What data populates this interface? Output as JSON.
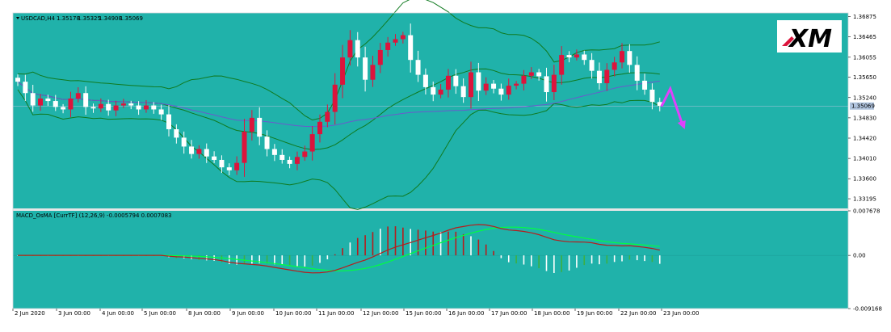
{
  "chart_data": [
    {
      "type": "candlestick",
      "title": "USDCAD,H4",
      "ohlc_readout": [
        "1.35178",
        "1.35325",
        "1.34908",
        "1.35069"
      ],
      "current_price": "1.35069",
      "ylim": [
        1.33,
        1.3695
      ],
      "ytick_labels": [
        "1.36875",
        "1.36465",
        "1.36055",
        "1.35650",
        "1.35240",
        "1.34830",
        "1.34420",
        "1.34010",
        "1.33600",
        "1.33195"
      ],
      "xtick_labels": [
        "2 Jun 2020",
        "3 Jun 00:00",
        "4 Jun 00:00",
        "5 Jun 00:00",
        "8 Jun 00:00",
        "9 Jun 00:00",
        "10 Jun 00:00",
        "11 Jun 00:00",
        "12 Jun 00:00",
        "15 Jun 00:00",
        "16 Jun 00:00",
        "17 Jun 00:00",
        "18 Jun 00:00",
        "19 Jun 00:00",
        "22 Jun 00:00",
        "23 Jun 00:00"
      ],
      "colors": {
        "background": "#20b2aa",
        "bull": "#dc143c",
        "bear": "#ffffff",
        "bands": "#0f7a1f",
        "ma": "#6a5acd",
        "arrow": "#e040fb",
        "grid_line": "#e6e6e6"
      },
      "overlays": [
        "Bollinger Bands",
        "Moving Average"
      ],
      "forecast_arrow": "up then down",
      "closes": [
        1.3556,
        1.3533,
        1.3508,
        1.3522,
        1.3517,
        1.3505,
        1.35,
        1.3522,
        1.3533,
        1.3505,
        1.3502,
        1.3511,
        1.3498,
        1.3508,
        1.3512,
        1.3508,
        1.35,
        1.3508,
        1.35,
        1.349,
        1.346,
        1.3443,
        1.3425,
        1.341,
        1.342,
        1.3405,
        1.3398,
        1.3383,
        1.3377,
        1.3392,
        1.3455,
        1.3483,
        1.3445,
        1.342,
        1.3408,
        1.3398,
        1.339,
        1.3404,
        1.3415,
        1.345,
        1.3475,
        1.3495,
        1.355,
        1.3605,
        1.364,
        1.3605,
        1.356,
        1.359,
        1.362,
        1.3635,
        1.3642,
        1.365,
        1.36,
        1.357,
        1.3545,
        1.353,
        1.354,
        1.3568,
        1.3547,
        1.3525,
        1.3575,
        1.3538,
        1.3552,
        1.3542,
        1.353,
        1.3548,
        1.3552,
        1.3568,
        1.3575,
        1.3567,
        1.3535,
        1.357,
        1.361,
        1.3605,
        1.3611,
        1.36,
        1.3578,
        1.3553,
        1.358,
        1.3595,
        1.3618,
        1.359,
        1.3558,
        1.354,
        1.3515,
        1.3507
      ],
      "macd_indicator": {
        "label": "MACD_OsMA [CurrTF] (12,26,9) -0.0005794 0.0007083",
        "ylim": [
          -0.00916,
          0.00767
        ],
        "ytick_labels": [
          "0.007678",
          "0.00",
          "-0.009168"
        ],
        "signal_line_color": "#00ff40",
        "macd_line_color": "#b71c1c",
        "histogram_colors": [
          "#ffffff",
          "#b71c1c",
          "#3cb043"
        ]
      }
    }
  ],
  "logo": {
    "text": "XM"
  }
}
